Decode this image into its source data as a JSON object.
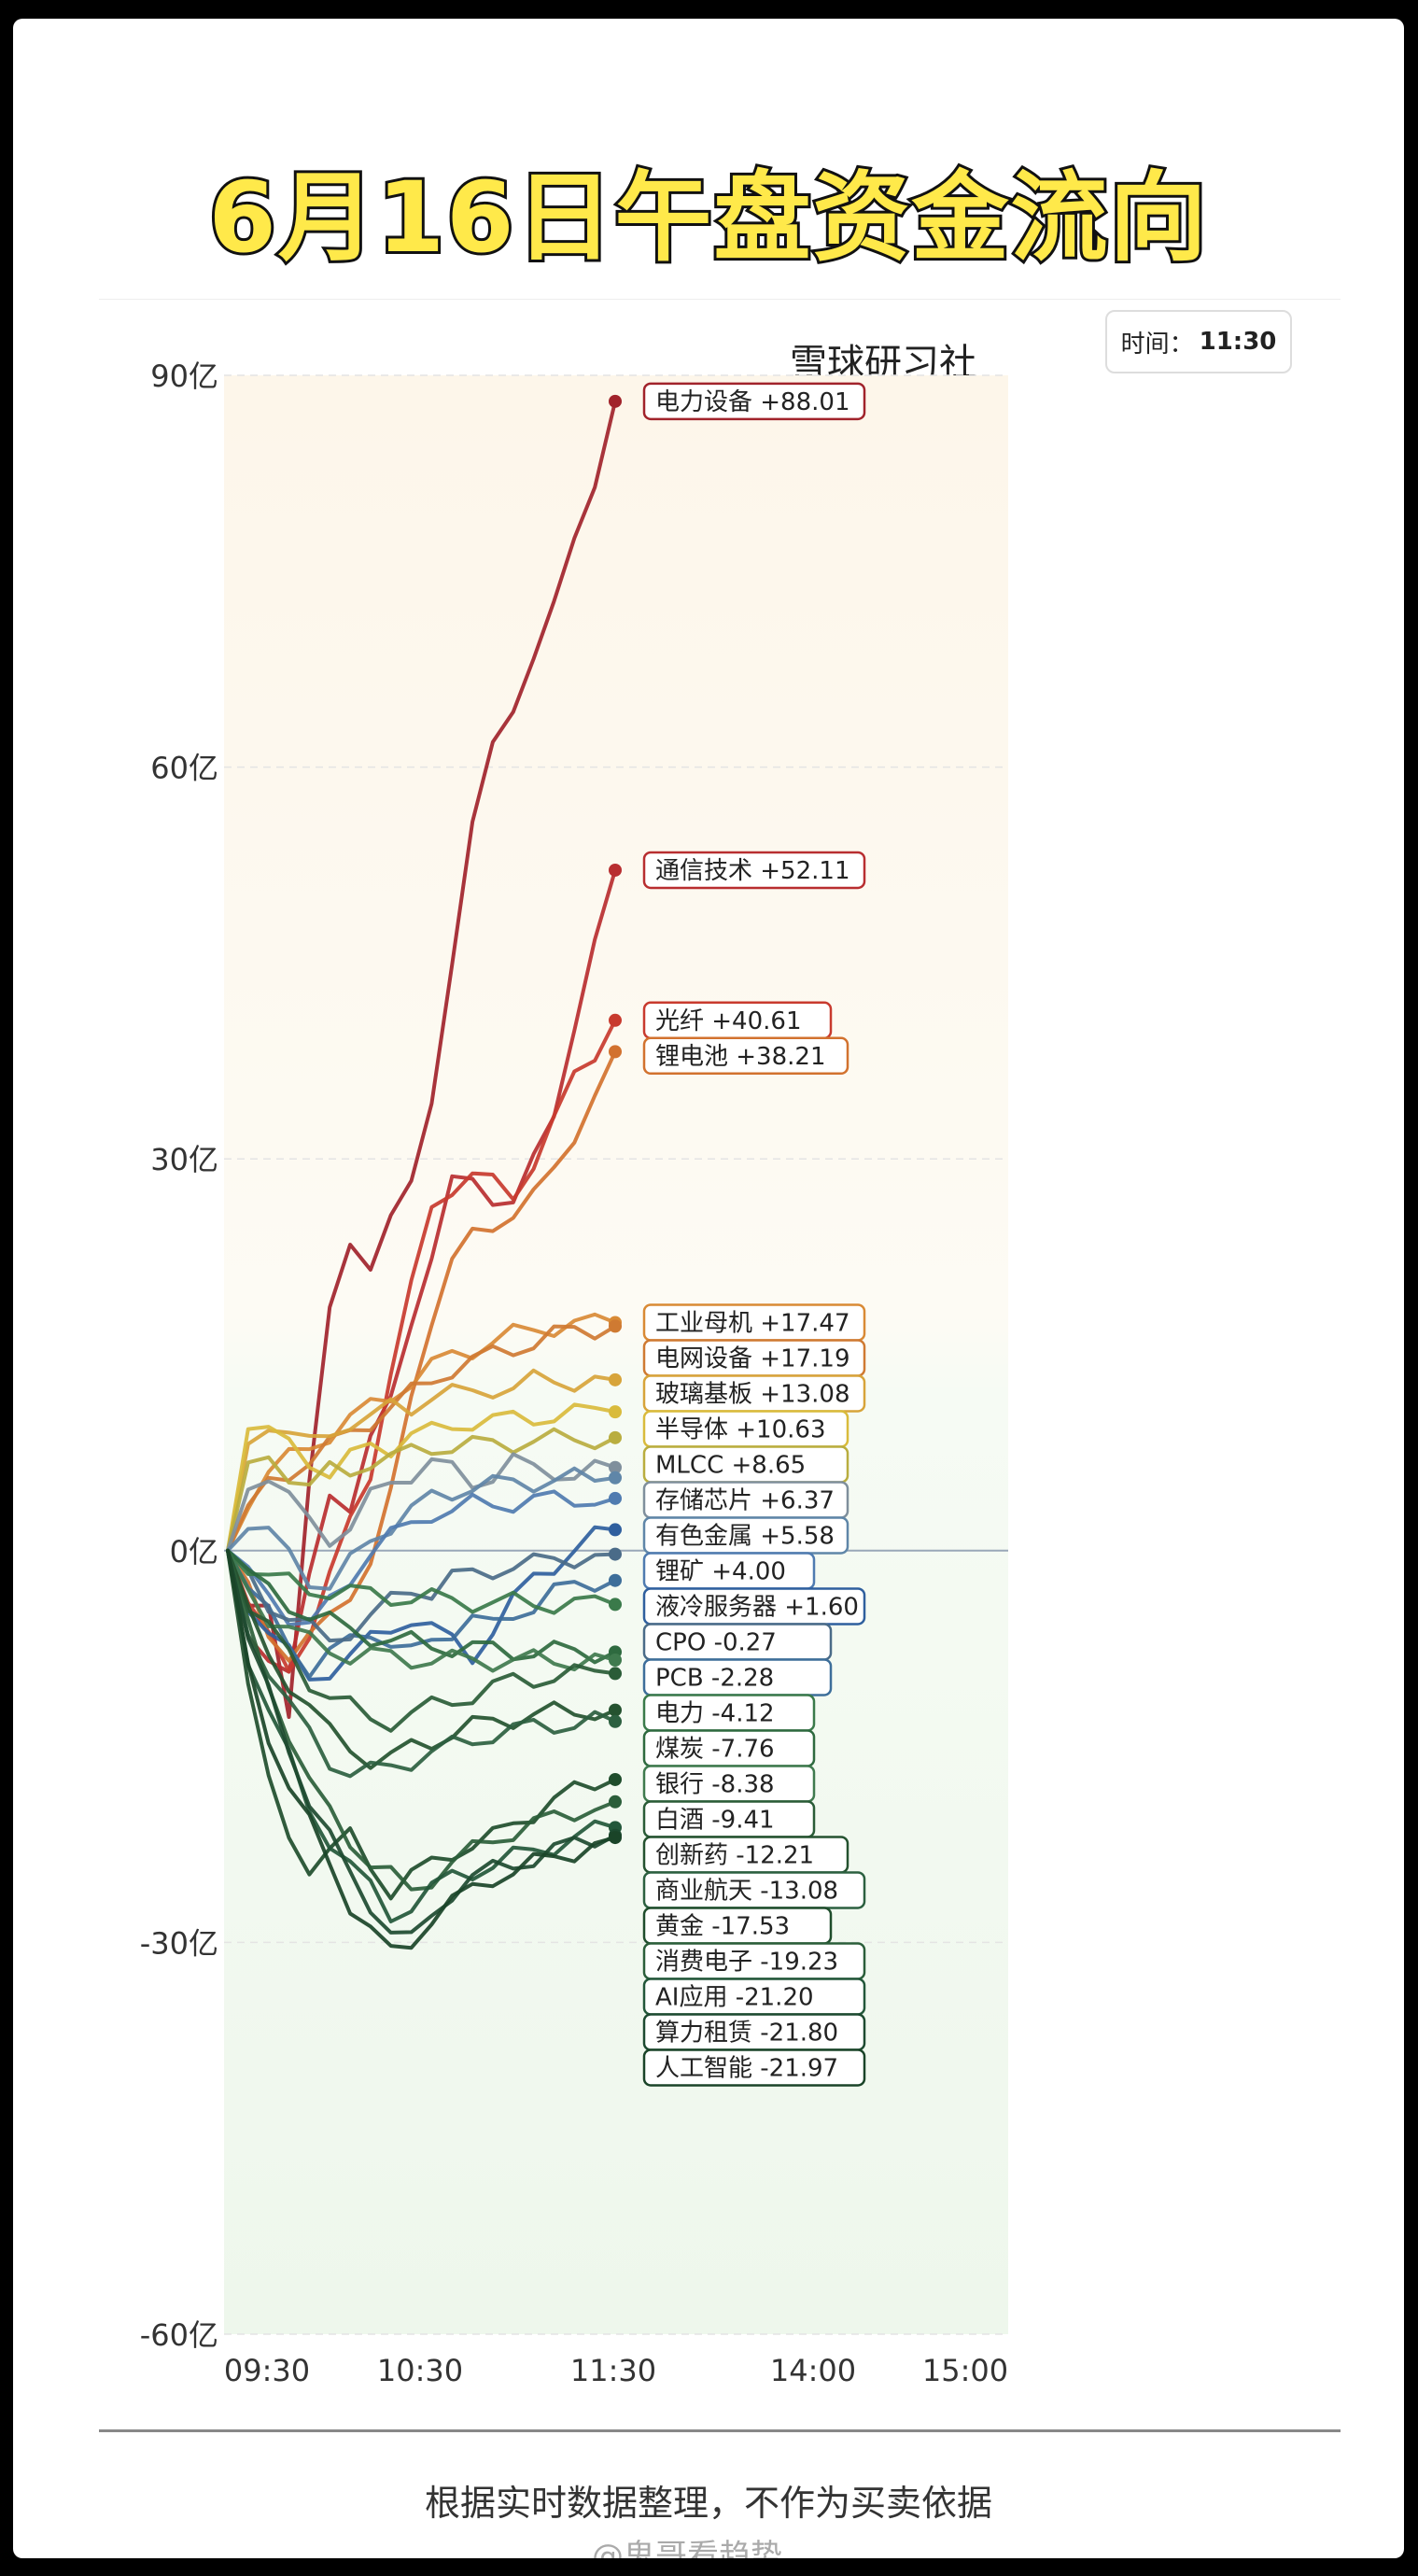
{
  "title": "6月16日午盘资金流向",
  "brand": "雪球研习社",
  "time_label": "时间：",
  "time_value": "11:30",
  "footer": "根据实时数据整理，不作为买卖依据",
  "watermark": "@鬼哥看趋势",
  "chart_data": {
    "type": "line",
    "ylim": [
      -60,
      90
    ],
    "ytick_values": [
      90,
      60,
      30,
      0,
      -30,
      -60
    ],
    "ytick_labels": [
      "90亿",
      "60亿",
      "30亿",
      "0亿",
      "-30亿",
      "-60亿"
    ],
    "xtick_labels": [
      "09:30",
      "10:30",
      "11:30",
      "14:00",
      "15:00"
    ],
    "series": [
      {
        "name": "电力设备",
        "label": "电力设备  +88.01",
        "value": 88.01,
        "color": "#a1232b",
        "path": [
          0,
          -5,
          -4,
          -12,
          5,
          18,
          24,
          22,
          25,
          28,
          35,
          45,
          55,
          62,
          65,
          68,
          72,
          78,
          82,
          88.01
        ]
      },
      {
        "name": "通信技术",
        "label": "通信技术  +52.11",
        "value": 52.11,
        "color": "#b82e30",
        "path": [
          0,
          -6,
          -8,
          -10,
          -2,
          5,
          3,
          8,
          12,
          18,
          22,
          28,
          29,
          27,
          26,
          30,
          34,
          40,
          46,
          52.11
        ]
      },
      {
        "name": "光纤",
        "label": "光纤  +40.61",
        "value": 40.61,
        "color": "#c83a2e",
        "path": [
          0,
          -4,
          -7,
          -9,
          -6,
          -2,
          2,
          6,
          14,
          20,
          26,
          28,
          29,
          28,
          27,
          30,
          33,
          36,
          38,
          40.61
        ]
      },
      {
        "name": "锂电池",
        "label": "锂电池  +38.21",
        "value": 38.21,
        "color": "#d2722f",
        "path": [
          0,
          -3,
          -6,
          -8,
          -7,
          -5,
          -3,
          -1,
          4,
          12,
          18,
          22,
          24,
          25,
          26,
          27,
          29,
          32,
          35,
          38.21
        ]
      },
      {
        "name": "工业母机",
        "label": "工业母机  +17.47",
        "value": 17.47,
        "color": "#d98a35",
        "path": [
          0,
          4,
          6,
          7,
          8,
          9,
          10,
          11,
          12,
          13,
          14,
          15,
          15.5,
          16,
          16.5,
          17,
          17.2,
          17.3,
          17.4,
          17.47
        ]
      },
      {
        "name": "电网设备",
        "label": "电网设备  +17.19",
        "value": 17.19,
        "color": "#cf7a32",
        "path": [
          0,
          3,
          5,
          6,
          7,
          8,
          9,
          10,
          11,
          12,
          13,
          14,
          14.5,
          15,
          15.5,
          16,
          16.5,
          16.8,
          17,
          17.19
        ]
      },
      {
        "name": "玻璃基板",
        "label": "玻璃基板  +13.08",
        "value": 13.08,
        "color": "#d7a43a",
        "path": [
          0,
          8,
          10,
          9,
          8,
          9,
          10,
          10,
          11,
          11,
          12,
          12,
          12,
          12.5,
          12.5,
          13,
          13,
          13,
          13,
          13.08
        ]
      },
      {
        "name": "半导体",
        "label": "半导体  +10.63",
        "value": 10.63,
        "color": "#d9bb3c",
        "path": [
          0,
          10,
          9,
          8,
          7,
          6,
          7,
          8,
          8,
          9,
          9,
          9.5,
          10,
          10,
          10,
          10.2,
          10.4,
          10.5,
          10.6,
          10.63
        ]
      },
      {
        "name": "MLCC",
        "label": "MLCC  +8.65",
        "value": 8.65,
        "color": "#b9ad3f",
        "path": [
          0,
          6,
          7,
          6,
          5,
          6,
          6,
          7,
          7,
          7.5,
          8,
          8,
          8,
          8.2,
          8.3,
          8.4,
          8.5,
          8.6,
          8.6,
          8.65
        ]
      },
      {
        "name": "存储芯片",
        "label": "存储芯片  +6.37",
        "value": 6.37,
        "color": "#7f8f9c",
        "path": [
          0,
          5,
          6,
          4,
          2,
          1,
          2,
          4,
          5,
          6,
          7,
          6,
          5,
          6,
          7,
          6,
          6,
          6,
          6.2,
          6.37
        ]
      },
      {
        "name": "有色金属",
        "label": "有色金属  +5.58",
        "value": 5.58,
        "color": "#5f86a8",
        "path": [
          0,
          2,
          1,
          0,
          -2,
          -3,
          -1,
          1,
          2,
          3,
          4,
          4.5,
          5,
          5,
          5.2,
          5.3,
          5.4,
          5.5,
          5.5,
          5.58
        ]
      },
      {
        "name": "锂矿",
        "label": "锂矿  +4.00",
        "value": 4.0,
        "color": "#4f7bb0",
        "path": [
          0,
          -2,
          -3,
          -5,
          -6,
          -4,
          -2,
          0,
          1,
          2,
          3,
          3,
          3.5,
          3.6,
          3.7,
          3.8,
          3.9,
          4,
          4,
          4.0
        ]
      },
      {
        "name": "液冷服务器",
        "label": "液冷服务器  +1.60",
        "value": 1.6,
        "color": "#2f5f9e",
        "path": [
          0,
          -4,
          -6,
          -8,
          -10,
          -9,
          -8,
          -7,
          -6,
          -5,
          -6,
          -7,
          -8,
          -6,
          -4,
          -2,
          -1,
          0,
          1,
          1.6
        ]
      },
      {
        "name": "PCB",
        "label": "PCB  -2.28",
        "value": -2.28,
        "color": "#3d6e9a",
        "path": [
          0,
          -3,
          -5,
          -7,
          -9,
          -8,
          -7,
          -6,
          -7,
          -8,
          -7,
          -6,
          -5,
          -6,
          -5,
          -4,
          -3,
          -3,
          -2.5,
          -2.28
        ]
      },
      {
        "name": "CPO",
        "label": "CPO  -0.27",
        "value": -0.27,
        "color": "#4a6b88",
        "path": [
          0,
          -2,
          -4,
          -5,
          -6,
          -7,
          -6,
          -5,
          -4,
          -3,
          -3,
          -2,
          -2,
          -1.5,
          -1,
          -1,
          -0.8,
          -0.5,
          -0.3,
          -0.27
        ]
      },
      {
        "name": "电力",
        "label": "电力  -4.12",
        "value": -4.12,
        "color": "#3a7a4a",
        "path": [
          0,
          -1,
          -2,
          -2.5,
          -3,
          -3,
          -3.2,
          -3.4,
          -3.5,
          -3.6,
          -3.7,
          -3.8,
          -3.9,
          -4,
          -4,
          -4,
          -4.05,
          -4.1,
          -4.1,
          -4.12
        ]
      },
      {
        "name": "煤炭",
        "label": "煤炭  -7.76",
        "value": -7.76,
        "color": "#2e6a3f",
        "path": [
          0,
          -2,
          -3,
          -4,
          -5,
          -5.5,
          -6,
          -6.5,
          -7,
          -7,
          -7.2,
          -7.4,
          -7.5,
          -7.6,
          -7.7,
          -7.7,
          -7.7,
          -7.75,
          -7.76,
          -7.76
        ]
      },
      {
        "name": "银行",
        "label": "银行  -8.38",
        "value": -8.38,
        "color": "#3f7a4e",
        "path": [
          0,
          -3,
          -5,
          -6,
          -7,
          -7.5,
          -8,
          -8,
          -8.2,
          -8.3,
          -8.3,
          -8.4,
          -8.4,
          -8.4,
          -8.4,
          -8.4,
          -8.4,
          -8.38,
          -8.38,
          -8.38
        ]
      },
      {
        "name": "白酒",
        "label": "白酒  -9.41",
        "value": -9.41,
        "color": "#2a5c37",
        "path": [
          0,
          -4,
          -6,
          -8,
          -10,
          -11,
          -12,
          -13,
          -13,
          -12.5,
          -12,
          -11.5,
          -11,
          -10.5,
          -10,
          -9.8,
          -9.6,
          -9.5,
          -9.4,
          -9.41
        ]
      },
      {
        "name": "创新药",
        "label": "创新药  -12.21",
        "value": -12.21,
        "color": "#24522f",
        "path": [
          0,
          -5,
          -8,
          -10,
          -12,
          -14,
          -15,
          -16,
          -16,
          -15,
          -14.5,
          -14,
          -13.5,
          -13,
          -12.8,
          -12.6,
          -12.4,
          -12.3,
          -12.2,
          -12.21
        ]
      },
      {
        "name": "商业航天",
        "label": "商业航天  -13.08",
        "value": -13.08,
        "color": "#2c6040",
        "path": [
          0,
          -6,
          -9,
          -12,
          -14,
          -16,
          -17,
          -17,
          -16.5,
          -16,
          -15.5,
          -15,
          -14.5,
          -14,
          -13.8,
          -13.5,
          -13.3,
          -13.2,
          -13.1,
          -13.08
        ]
      },
      {
        "name": "黄金",
        "label": "黄金  -17.53",
        "value": -17.53,
        "color": "#1f4d2c",
        "path": [
          0,
          -10,
          -18,
          -22,
          -24,
          -23,
          -22,
          -24,
          -26,
          -25,
          -24,
          -23,
          -22.5,
          -22,
          -21,
          -20,
          -19,
          -18.5,
          -18,
          -17.53
        ]
      },
      {
        "name": "消费电子",
        "label": "消费电子  -19.23",
        "value": -19.23,
        "color": "#2b5e3a",
        "path": [
          0,
          -6,
          -10,
          -14,
          -18,
          -20,
          -22,
          -24,
          -25,
          -26,
          -25,
          -24,
          -23,
          -22,
          -21.5,
          -21,
          -20.5,
          -20,
          -19.5,
          -19.23
        ]
      },
      {
        "name": "AI应用",
        "label": "AI应用  -21.20",
        "value": -21.2,
        "color": "#23573a",
        "path": [
          0,
          -8,
          -12,
          -16,
          -20,
          -22,
          -24,
          -26,
          -28,
          -27,
          -26,
          -25,
          -24.5,
          -24,
          -23.5,
          -23,
          -22.5,
          -22,
          -21.5,
          -21.2
        ]
      },
      {
        "name": "算力租赁",
        "label": "算力租赁  -21.80",
        "value": -21.8,
        "color": "#1d4a30",
        "path": [
          0,
          -7,
          -11,
          -15,
          -19,
          -22,
          -25,
          -27,
          -29,
          -30,
          -28,
          -26,
          -25,
          -24.5,
          -24,
          -23.5,
          -23,
          -22.5,
          -22,
          -21.8
        ]
      },
      {
        "name": "人工智能",
        "label": "人工智能  -21.97",
        "value": -21.97,
        "color": "#1a4428",
        "path": [
          0,
          -9,
          -14,
          -18,
          -21,
          -24,
          -27,
          -29,
          -31,
          -30,
          -28,
          -27,
          -26,
          -25,
          -24.5,
          -24,
          -23.5,
          -23,
          -22.5,
          -21.97
        ]
      }
    ]
  }
}
